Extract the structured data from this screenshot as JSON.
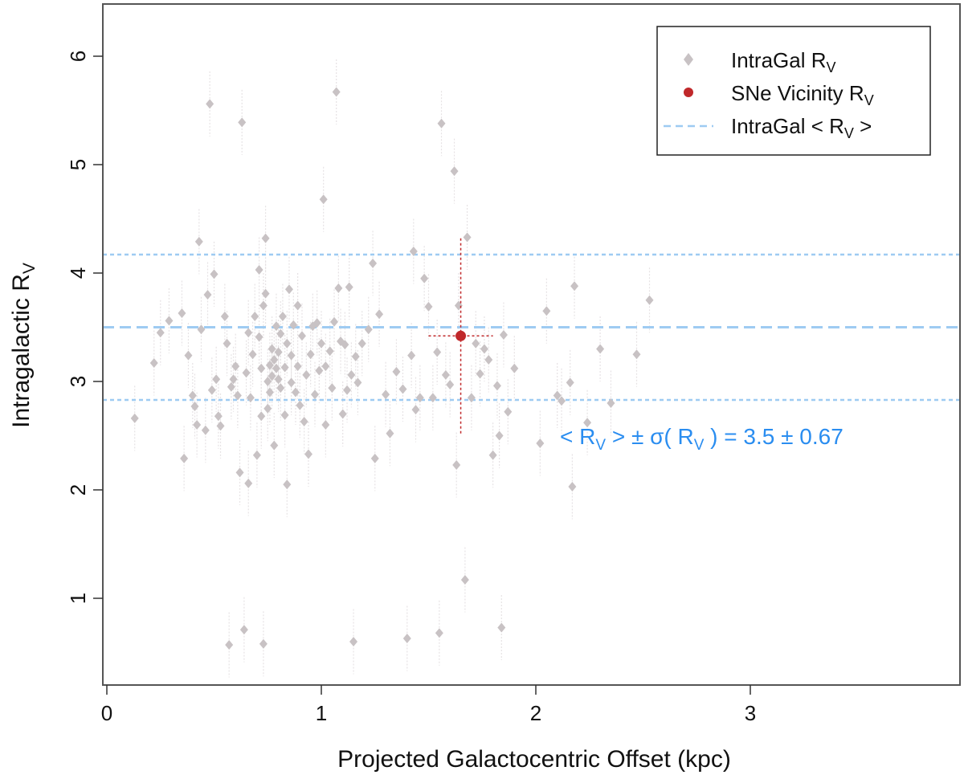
{
  "chart_data": {
    "type": "scatter",
    "title": "",
    "xlabel": "Projected Galactocentric Offset (kpc)",
    "ylabel_main": "Intragalactic R",
    "ylabel_sub": "V",
    "xlim": [
      0,
      4
    ],
    "ylim": [
      0.3,
      6.4
    ],
    "x_ticks": [
      0,
      1,
      2,
      3
    ],
    "y_ticks": [
      1,
      2,
      3,
      4,
      5,
      6
    ],
    "x_tick_labels": [
      "0",
      "1",
      "2",
      "3"
    ],
    "y_tick_labels": [
      "1",
      "2",
      "3",
      "4",
      "5",
      "6"
    ],
    "reference_lines": {
      "mean": 3.5,
      "lower": 2.83,
      "upper": 4.17
    },
    "annotation": {
      "part1": "< R",
      "sub1": "V",
      "part2": " > ± σ( R",
      "sub2": "V",
      "part3": " ) =  3.5 ± 0.67",
      "position": "right-middle"
    },
    "legend": {
      "position": "top-right",
      "entries": [
        {
          "main": "IntraGal R",
          "sub": "V",
          "suffix": "",
          "marker": "diamond"
        },
        {
          "main": "SNe Vicinity R",
          "sub": "V",
          "suffix": "",
          "marker": "circle"
        },
        {
          "main": "IntraGal < R",
          "sub": "V",
          "suffix": " >",
          "marker": "dashed-line"
        }
      ]
    },
    "colors": {
      "intragal": "#c8c2c4",
      "sne": "#c0282a",
      "mean_line": "#9ecbf2",
      "annotation": "#2a8df0"
    },
    "series": [
      {
        "name": "IntraGal R_V",
        "err": 0.3,
        "points": [
          [
            0.13,
            2.66
          ],
          [
            0.22,
            3.17
          ],
          [
            0.25,
            3.45
          ],
          [
            0.29,
            3.56
          ],
          [
            0.35,
            3.63
          ],
          [
            0.36,
            2.29
          ],
          [
            0.38,
            3.24
          ],
          [
            0.4,
            2.87
          ],
          [
            0.41,
            2.77
          ],
          [
            0.42,
            2.6
          ],
          [
            0.43,
            4.29
          ],
          [
            0.44,
            3.48
          ],
          [
            0.46,
            2.55
          ],
          [
            0.47,
            3.8
          ],
          [
            0.48,
            5.56
          ],
          [
            0.49,
            2.92
          ],
          [
            0.5,
            3.99
          ],
          [
            0.51,
            3.02
          ],
          [
            0.52,
            2.68
          ],
          [
            0.53,
            2.59
          ],
          [
            0.55,
            3.6
          ],
          [
            0.56,
            3.35
          ],
          [
            0.57,
            0.57
          ],
          [
            0.58,
            2.95
          ],
          [
            0.59,
            3.02
          ],
          [
            0.6,
            3.14
          ],
          [
            0.61,
            2.87
          ],
          [
            0.62,
            2.16
          ],
          [
            0.63,
            5.39
          ],
          [
            0.64,
            0.71
          ],
          [
            0.65,
            3.08
          ],
          [
            0.66,
            2.06
          ],
          [
            0.66,
            3.45
          ],
          [
            0.67,
            2.85
          ],
          [
            0.68,
            3.25
          ],
          [
            0.69,
            3.6
          ],
          [
            0.7,
            2.32
          ],
          [
            0.71,
            3.41
          ],
          [
            0.71,
            4.03
          ],
          [
            0.72,
            3.12
          ],
          [
            0.72,
            2.68
          ],
          [
            0.73,
            3.7
          ],
          [
            0.73,
            0.58
          ],
          [
            0.74,
            3.81
          ],
          [
            0.74,
            4.32
          ],
          [
            0.75,
            3.0
          ],
          [
            0.75,
            2.75
          ],
          [
            0.76,
            3.15
          ],
          [
            0.76,
            2.9
          ],
          [
            0.77,
            3.3
          ],
          [
            0.77,
            3.05
          ],
          [
            0.78,
            3.2
          ],
          [
            0.78,
            2.41
          ],
          [
            0.79,
            3.51
          ],
          [
            0.79,
            3.12
          ],
          [
            0.8,
            3.27
          ],
          [
            0.8,
            3.02
          ],
          [
            0.81,
            3.44
          ],
          [
            0.81,
            2.94
          ],
          [
            0.82,
            3.6
          ],
          [
            0.83,
            3.13
          ],
          [
            0.83,
            2.69
          ],
          [
            0.84,
            3.35
          ],
          [
            0.84,
            2.05
          ],
          [
            0.85,
            3.85
          ],
          [
            0.86,
            2.99
          ],
          [
            0.86,
            3.24
          ],
          [
            0.87,
            3.52
          ],
          [
            0.88,
            2.9
          ],
          [
            0.89,
            3.7
          ],
          [
            0.89,
            3.14
          ],
          [
            0.9,
            2.78
          ],
          [
            0.91,
            3.42
          ],
          [
            0.92,
            2.63
          ],
          [
            0.93,
            3.06
          ],
          [
            0.94,
            2.33
          ],
          [
            0.95,
            3.25
          ],
          [
            0.96,
            3.51
          ],
          [
            0.97,
            2.88
          ],
          [
            0.98,
            3.54
          ],
          [
            0.99,
            3.1
          ],
          [
            1.0,
            3.35
          ],
          [
            1.01,
            4.68
          ],
          [
            1.02,
            3.14
          ],
          [
            1.02,
            2.6
          ],
          [
            1.04,
            3.28
          ],
          [
            1.05,
            2.94
          ],
          [
            1.06,
            3.55
          ],
          [
            1.07,
            5.67
          ],
          [
            1.08,
            3.86
          ],
          [
            1.09,
            3.37
          ],
          [
            1.1,
            2.7
          ],
          [
            1.11,
            3.34
          ],
          [
            1.12,
            2.92
          ],
          [
            1.13,
            3.87
          ],
          [
            1.14,
            3.06
          ],
          [
            1.15,
            0.6
          ],
          [
            1.16,
            3.23
          ],
          [
            1.17,
            2.99
          ],
          [
            1.19,
            3.35
          ],
          [
            1.22,
            3.48
          ],
          [
            1.24,
            4.09
          ],
          [
            1.25,
            2.29
          ],
          [
            1.27,
            3.62
          ],
          [
            1.3,
            2.88
          ],
          [
            1.32,
            2.52
          ],
          [
            1.35,
            3.09
          ],
          [
            1.38,
            2.93
          ],
          [
            1.4,
            0.63
          ],
          [
            1.42,
            3.24
          ],
          [
            1.43,
            4.2
          ],
          [
            1.44,
            2.74
          ],
          [
            1.46,
            2.85
          ],
          [
            1.48,
            3.95
          ],
          [
            1.5,
            3.69
          ],
          [
            1.52,
            2.85
          ],
          [
            1.54,
            3.27
          ],
          [
            1.55,
            0.68
          ],
          [
            1.56,
            5.38
          ],
          [
            1.58,
            3.06
          ],
          [
            1.6,
            2.97
          ],
          [
            1.62,
            4.94
          ],
          [
            1.63,
            2.23
          ],
          [
            1.64,
            3.7
          ],
          [
            1.67,
            1.17
          ],
          [
            1.68,
            4.33
          ],
          [
            1.7,
            2.85
          ],
          [
            1.72,
            3.35
          ],
          [
            1.74,
            3.07
          ],
          [
            1.76,
            3.3
          ],
          [
            1.78,
            3.2
          ],
          [
            1.8,
            2.32
          ],
          [
            1.82,
            2.96
          ],
          [
            1.83,
            2.5
          ],
          [
            1.84,
            0.73
          ],
          [
            1.85,
            3.43
          ],
          [
            1.87,
            2.72
          ],
          [
            1.9,
            3.12
          ],
          [
            2.02,
            2.43
          ],
          [
            2.05,
            3.65
          ],
          [
            2.1,
            2.87
          ],
          [
            2.12,
            2.82
          ],
          [
            2.16,
            2.99
          ],
          [
            2.17,
            2.03
          ],
          [
            2.18,
            3.88
          ],
          [
            2.24,
            2.62
          ],
          [
            2.3,
            3.3
          ],
          [
            2.35,
            2.8
          ],
          [
            2.47,
            3.25
          ],
          [
            2.53,
            3.75
          ]
        ]
      },
      {
        "name": "SNe Vicinity R_V",
        "points": [
          {
            "x": 1.65,
            "y": 3.42,
            "xerr": 0.15,
            "yerr": 0.9
          }
        ]
      }
    ]
  }
}
